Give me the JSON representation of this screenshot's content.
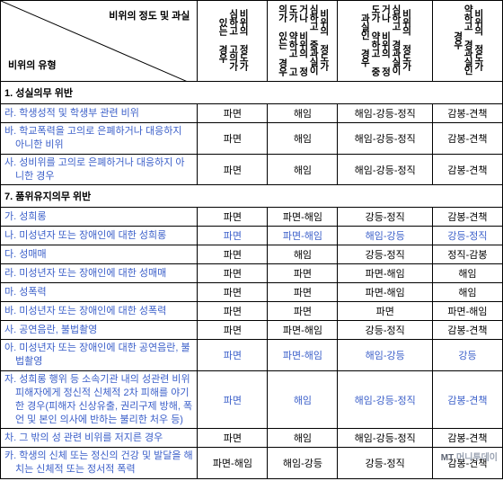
{
  "header": {
    "top": "비위의 정도\n및 과실",
    "bottom": "비위의 유형",
    "cols": [
      "비위의 정도가 심하고 고의가 있는 경우",
      "비위의 정도가 심하고 중과실이거나 비위의 정도가 약하고 고의가 있는 경우",
      "비위의 정도가 심하고 경과실이거나 비위의 정도가 약하고 중과실인 경우",
      "비위의 정도가 약하고 경과실인 경우"
    ]
  },
  "sections": [
    {
      "title": "1. 성실의무 위반",
      "rows": [
        {
          "label": "라. 학생성적 및 학생부 관련 비위",
          "vals": [
            "파면",
            "해임",
            "해임-강등-정직",
            "감봉-견책"
          ],
          "blue": false
        },
        {
          "label": "바. 학교폭력을 고의로 은폐하거나 대응하지 아니한 비위",
          "vals": [
            "파면",
            "해임",
            "해임-강등-정직",
            "감봉-견책"
          ],
          "blue": false
        },
        {
          "label": "사. 성비위를 고의로 은폐하거나 대응하지 아니한 경우",
          "vals": [
            "파면",
            "해임",
            "해임-강등-정직",
            "감봉-견책"
          ],
          "blue": false
        }
      ]
    },
    {
      "title": "7. 품위유지의무 위반",
      "rows": [
        {
          "label": "가. 성희롱",
          "vals": [
            "파면",
            "파면-해임",
            "강등-정직",
            "감봉-견책"
          ],
          "blue": false
        },
        {
          "label": "나. 미성년자 또는 장애인에 대한 성희롱",
          "vals": [
            "파면",
            "파면-해임",
            "해임-강등",
            "강등-정직"
          ],
          "blue": true
        },
        {
          "label": "다. 성매매",
          "vals": [
            "파면",
            "해임",
            "강등-정직",
            "정직-감봉"
          ],
          "blue": false
        },
        {
          "label": "라. 미성년자 또는 장애인에 대한 성매매",
          "vals": [
            "파면",
            "파면",
            "파면-해임",
            "해임"
          ],
          "blue": false
        },
        {
          "label": "마. 성폭력",
          "vals": [
            "파면",
            "파면",
            "파면-해임",
            "해임"
          ],
          "blue": false
        },
        {
          "label": "바. 미성년자 또는 장애인에 대한 성폭력",
          "vals": [
            "파면",
            "파면",
            "파면",
            "파면-해임"
          ],
          "blue": false
        },
        {
          "label": "사. 공연음란, 불법촬영",
          "vals": [
            "파면",
            "파면-해임",
            "강등-정직",
            "감봉-견책"
          ],
          "blue": false
        },
        {
          "label": "아. 미성년자 또는 장애인에 대한 공연음란, 불법촬영",
          "vals": [
            "파면",
            "파면-해임",
            "해임-강등",
            "강등"
          ],
          "blue": true
        },
        {
          "label": "자. 성희롱 행위 등 소속기관 내의 성관련 비위 피해자에게 정신적 신체적 2차 피해를 야기한 경우(피해자 신상유출, 권리구제 방해, 폭언 및 본인 의사에 반하는 불리한 처우 등)",
          "vals": [
            "파면",
            "해임",
            "해임-강등-정직",
            "감봉-견책"
          ],
          "blue": true
        },
        {
          "label": "차. 그 밖의 성 관련 비위를 저지른 경우",
          "vals": [
            "파면",
            "해임",
            "해임-강등-정직",
            "감봉-견책"
          ],
          "blue": false
        },
        {
          "label": "카. 학생의 신체 또는 정신의 건강 및 발달을 해치는 신체적 또는 정서적 폭력",
          "vals": [
            "파면-해임",
            "해임-강등",
            "강등-정직",
            "감봉-견책"
          ],
          "blue": false
        }
      ]
    }
  ],
  "watermark": {
    "text": "머니투데이",
    "logo": "MT"
  },
  "colors": {
    "blue": "#3b5fc9",
    "text": "#000000",
    "border": "#000000"
  }
}
